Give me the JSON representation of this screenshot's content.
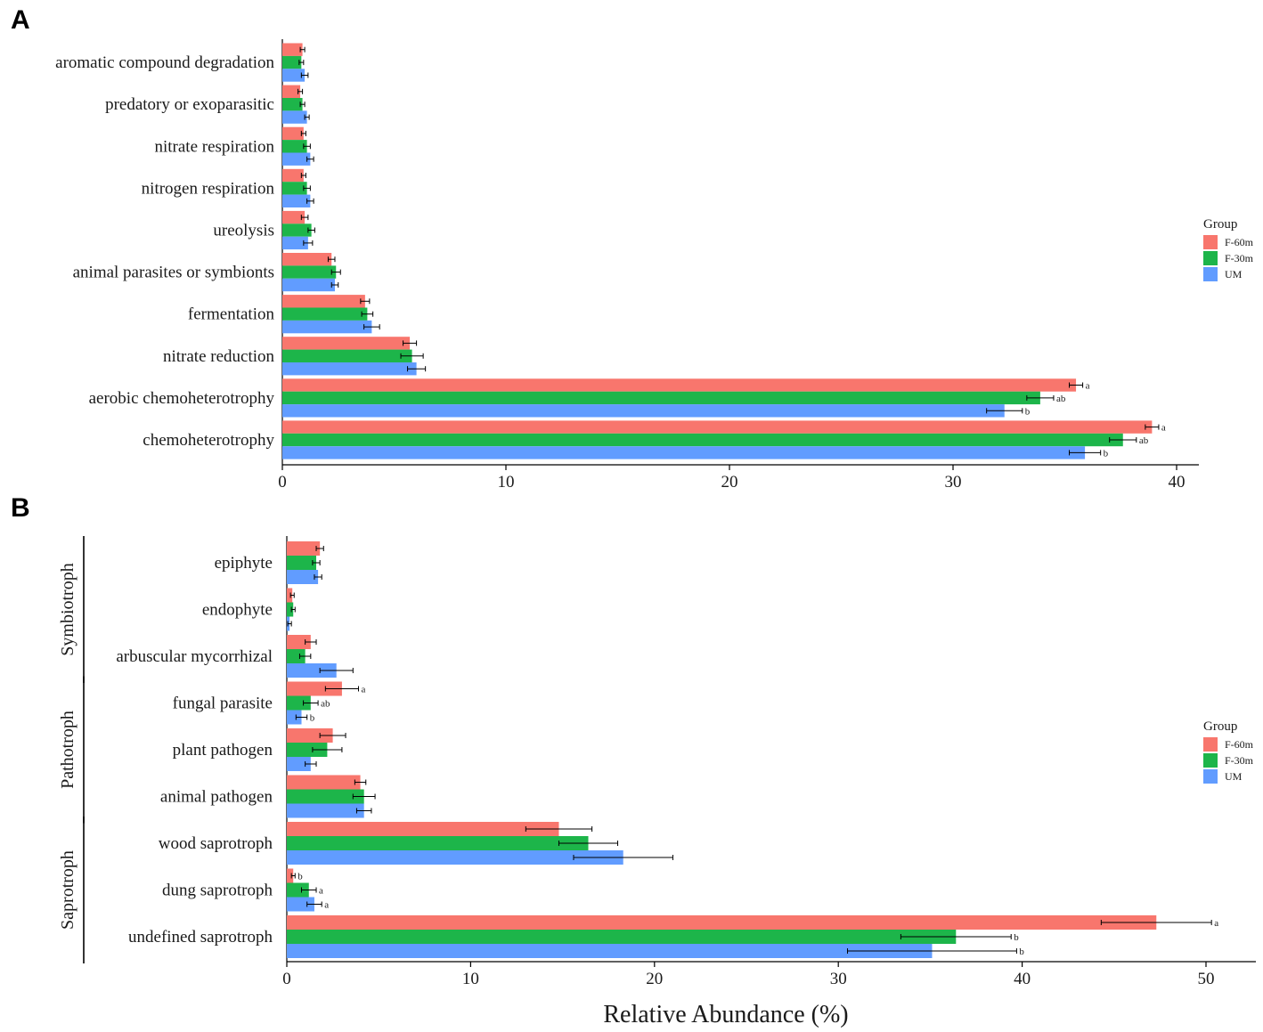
{
  "colors": {
    "F-60m": "#F8766D",
    "F-30m": "#1DB54A",
    "UM": "#619CFF"
  },
  "xlabel": "Relative Abundance (%)",
  "chart_data": [
    {
      "panel": "A",
      "type": "bar",
      "orientation": "horizontal",
      "xlim": [
        0,
        40
      ],
      "xticks": [
        "0",
        "10",
        "20",
        "30",
        "40"
      ],
      "legend": {
        "title": "Group",
        "items": [
          "F-60m",
          "F-30m",
          "UM"
        ],
        "placement": "right"
      },
      "categories": [
        "aromatic compound degradation",
        "predatory or exoparasitic",
        "nitrate respiration",
        "nitrogen respiration",
        "ureolysis",
        "animal parasites or symbionts",
        "fermentation",
        "nitrate reduction",
        "aerobic chemoheterotrophy",
        "chemoheterotrophy"
      ],
      "series": [
        {
          "name": "F-60m",
          "values": [
            0.9,
            0.8,
            0.95,
            0.95,
            1.0,
            2.2,
            3.7,
            5.7,
            35.5,
            38.9
          ],
          "errors": [
            0.1,
            0.1,
            0.1,
            0.1,
            0.15,
            0.15,
            0.2,
            0.3,
            0.3,
            0.3
          ],
          "sig": [
            "",
            "",
            "",
            "",
            "",
            "",
            "",
            "",
            "a",
            "a"
          ]
        },
        {
          "name": "F-30m",
          "values": [
            0.85,
            0.9,
            1.1,
            1.1,
            1.3,
            2.4,
            3.8,
            5.8,
            33.9,
            37.6
          ],
          "errors": [
            0.1,
            0.1,
            0.15,
            0.15,
            0.15,
            0.2,
            0.25,
            0.5,
            0.6,
            0.6
          ],
          "sig": [
            "",
            "",
            "",
            "",
            "",
            "",
            "",
            "",
            "ab",
            "ab"
          ]
        },
        {
          "name": "UM",
          "values": [
            1.0,
            1.1,
            1.25,
            1.25,
            1.15,
            2.35,
            4.0,
            6.0,
            32.3,
            35.9
          ],
          "errors": [
            0.15,
            0.1,
            0.15,
            0.15,
            0.2,
            0.15,
            0.35,
            0.4,
            0.8,
            0.7
          ],
          "sig": [
            "",
            "",
            "",
            "",
            "",
            "",
            "",
            "",
            "b",
            "b"
          ]
        }
      ]
    },
    {
      "panel": "B",
      "type": "bar",
      "orientation": "horizontal",
      "xlim": [
        0,
        50
      ],
      "xticks": [
        "0",
        "10",
        "20",
        "30",
        "40",
        "50"
      ],
      "legend": {
        "title": "Group",
        "items": [
          "F-60m",
          "F-30m",
          "UM"
        ],
        "placement": "right"
      },
      "categories": [
        "epiphyte",
        "endophyte",
        "arbuscular mycorrhizal",
        "fungal parasite",
        "plant pathogen",
        "animal pathogen",
        "wood saprotroph",
        "dung saprotroph",
        "undefined saprotroph"
      ],
      "groups": [
        {
          "name": "Symbiotroph",
          "first": 0,
          "last": 2
        },
        {
          "name": "Pathotroph",
          "first": 3,
          "last": 5
        },
        {
          "name": "Saprotroph",
          "first": 6,
          "last": 8
        }
      ],
      "series": [
        {
          "name": "F-60m",
          "values": [
            1.8,
            0.3,
            1.3,
            3.0,
            2.5,
            4.0,
            14.8,
            0.35,
            47.3
          ],
          "errors": [
            0.2,
            0.1,
            0.3,
            0.9,
            0.7,
            0.3,
            1.8,
            0.1,
            3.0
          ],
          "sig": [
            "",
            "",
            "",
            "a",
            "",
            "",
            "",
            "b",
            "a"
          ]
        },
        {
          "name": "F-30m",
          "values": [
            1.6,
            0.35,
            1.0,
            1.3,
            2.2,
            4.2,
            16.4,
            1.2,
            36.4
          ],
          "errors": [
            0.2,
            0.1,
            0.3,
            0.4,
            0.8,
            0.6,
            1.6,
            0.4,
            3.0
          ],
          "sig": [
            "",
            "",
            "",
            "ab",
            "",
            "",
            "",
            "a",
            "b"
          ]
        },
        {
          "name": "UM",
          "values": [
            1.7,
            0.15,
            2.7,
            0.8,
            1.3,
            4.2,
            18.3,
            1.5,
            35.1
          ],
          "errors": [
            0.2,
            0.1,
            0.9,
            0.3,
            0.3,
            0.4,
            2.7,
            0.4,
            4.6
          ],
          "sig": [
            "",
            "",
            "",
            "b",
            "",
            "",
            "",
            "a",
            "b"
          ]
        }
      ]
    }
  ]
}
